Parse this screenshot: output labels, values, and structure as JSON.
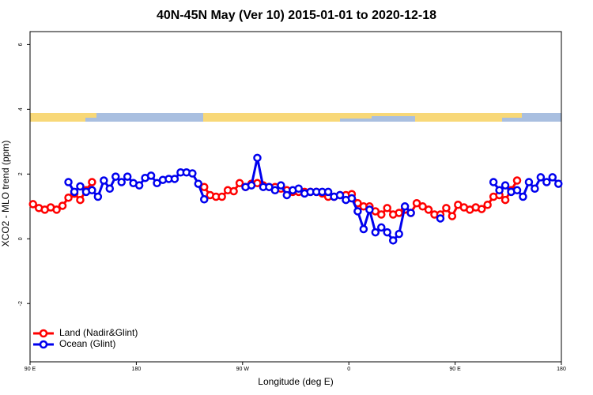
{
  "chart_data": {
    "type": "line",
    "title": "40N-45N May (Ver 10)   2015-01-01 to 2020-12-18",
    "x_label": "Longitude (deg E)",
    "y_label": "XCO2 - MLO trend (ppm)",
    "xlim": [
      90,
      540
    ],
    "ylim": [
      -3.8,
      6.4
    ],
    "xticks": [
      {
        "value": 90,
        "label": "90 E"
      },
      180,
      {
        "value": 270,
        "label": "90 W"
      },
      {
        "value": 360,
        "label": "0"
      },
      {
        "value": 450,
        "label": "90 E"
      },
      {
        "value": 540,
        "label": "180"
      }
    ],
    "yticks": [
      -2,
      0,
      2,
      4,
      6
    ],
    "legend": "bottom-left",
    "x": [
      92.5,
      97.5,
      102.5,
      107.5,
      112.5,
      117.5,
      122.5,
      127.5,
      132.5,
      137.5,
      142.5,
      147.5,
      152.5,
      157.5,
      162.5,
      167.5,
      172.5,
      177.5,
      182.5,
      187.5,
      192.5,
      197.5,
      202.5,
      207.5,
      212.5,
      217.5,
      222.5,
      227.5,
      232.5,
      237.5,
      242.5,
      247.5,
      252.5,
      257.5,
      262.5,
      267.5,
      272.5,
      277.5,
      282.5,
      287.5,
      292.5,
      297.5,
      302.5,
      307.5,
      312.5,
      317.5,
      322.5,
      327.5,
      332.5,
      337.5,
      342.5,
      347.5,
      352.5,
      357.5,
      362.5,
      367.5,
      372.5,
      377.5,
      382.5,
      387.5,
      392.5,
      397.5,
      402.5,
      407.5,
      412.5,
      417.5,
      422.5,
      427.5,
      432.5,
      437.5,
      442.5,
      447.5,
      452.5,
      457.5,
      462.5,
      467.5,
      472.5,
      477.5,
      482.5,
      487.5,
      492.5,
      497.5,
      502.5,
      507.5,
      512.5,
      517.5,
      522.5,
      527.5,
      532.5,
      537.5
    ],
    "series": [
      {
        "name": "Land (Nadir&Glint)",
        "color": "#ff0000",
        "values": [
          1.07,
          0.95,
          0.9,
          0.97,
          0.9,
          1.02,
          1.27,
          1.39,
          1.2,
          1.5,
          1.75,
          null,
          null,
          null,
          null,
          null,
          null,
          null,
          null,
          null,
          null,
          null,
          null,
          null,
          null,
          null,
          null,
          null,
          null,
          1.6,
          1.35,
          1.3,
          1.3,
          1.5,
          1.47,
          1.72,
          1.6,
          1.7,
          1.72,
          1.65,
          1.6,
          1.6,
          1.55,
          1.5,
          1.45,
          1.45,
          1.45,
          1.45,
          1.45,
          1.4,
          1.3,
          1.3,
          1.35,
          1.35,
          1.38,
          1.1,
          1.0,
          1.0,
          0.85,
          0.75,
          0.95,
          0.75,
          0.8,
          0.9,
          0.8,
          1.1,
          1.0,
          0.9,
          0.75,
          0.75,
          0.95,
          0.7,
          1.05,
          0.97,
          0.9,
          0.97,
          0.92,
          1.05,
          1.3,
          1.35,
          1.2,
          1.5,
          1.8,
          null,
          null,
          null,
          null,
          null,
          null,
          null
        ]
      },
      {
        "name": "Ocean (Glint)",
        "color": "#0000ee",
        "values": [
          null,
          null,
          null,
          null,
          null,
          null,
          1.75,
          1.45,
          1.62,
          1.45,
          1.5,
          1.3,
          1.8,
          1.55,
          1.92,
          1.75,
          1.92,
          1.72,
          1.65,
          1.88,
          1.95,
          1.72,
          1.82,
          1.85,
          1.85,
          2.05,
          2.05,
          2.02,
          1.7,
          1.22,
          null,
          null,
          null,
          null,
          null,
          null,
          1.6,
          1.65,
          2.5,
          1.6,
          1.6,
          1.5,
          1.65,
          1.35,
          1.5,
          1.55,
          1.4,
          1.45,
          1.45,
          1.45,
          1.45,
          1.3,
          1.35,
          1.2,
          1.25,
          0.85,
          0.3,
          0.9,
          0.2,
          0.35,
          0.2,
          -0.05,
          0.15,
          1.0,
          0.8,
          null,
          null,
          null,
          null,
          0.63,
          null,
          null,
          null,
          null,
          null,
          null,
          null,
          null,
          1.75,
          1.5,
          1.65,
          1.45,
          1.5,
          1.3,
          1.75,
          1.55,
          1.9,
          1.75,
          1.9,
          1.7
        ]
      }
    ]
  }
}
